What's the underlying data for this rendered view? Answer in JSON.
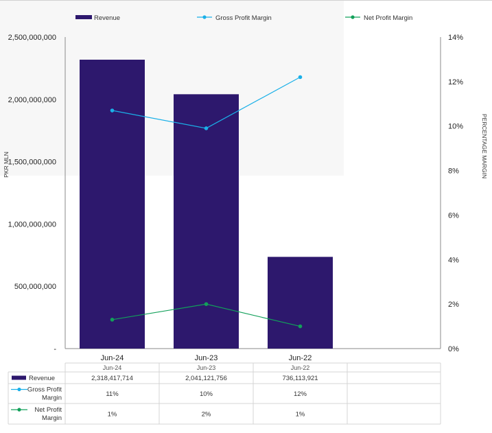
{
  "chart_data": {
    "type": "bar",
    "categories": [
      "Jun-24",
      "Jun-23",
      "Jun-22"
    ],
    "ylabel": "PKR MLN",
    "y2label": "PERCENTAGE MARGIN",
    "ylim": [
      0,
      2500000000
    ],
    "y2lim": [
      0,
      14
    ],
    "y_ticks": [
      "-",
      "500,000,000",
      "1,000,000,000",
      "1,500,000,000",
      "2,000,000,000",
      "2,500,000,000"
    ],
    "y2_ticks": [
      "0%",
      "2%",
      "4%",
      "6%",
      "8%",
      "10%",
      "12%",
      "14%"
    ],
    "legend_position": "top",
    "series": [
      {
        "name": "Revenue",
        "kind": "bar",
        "axis": "left",
        "color": "#2d186d",
        "values": [
          2318417714,
          2041121756,
          736113921
        ]
      },
      {
        "name": "Gross Profit Margin",
        "kind": "line",
        "axis": "right",
        "color": "#1ab0e8",
        "values": [
          10.7,
          9.9,
          12.2
        ]
      },
      {
        "name": "Net Profit Margin",
        "kind": "line",
        "axis": "right",
        "color": "#12a05a",
        "values": [
          1.3,
          2.0,
          1.0
        ]
      }
    ],
    "data_table": {
      "header": [
        "Jun-24",
        "Jun-23",
        "Jun-22"
      ],
      "rows": [
        {
          "label": [
            "Revenue"
          ],
          "values": [
            "2,318,417,714",
            "2,041,121,756",
            "736,113,921"
          ]
        },
        {
          "label": [
            "Gross Profit",
            "Margin"
          ],
          "values": [
            "11%",
            "10%",
            "12%"
          ]
        },
        {
          "label": [
            "Net Profit",
            "Margin"
          ],
          "values": [
            "1%",
            "2%",
            "1%"
          ]
        }
      ]
    }
  }
}
